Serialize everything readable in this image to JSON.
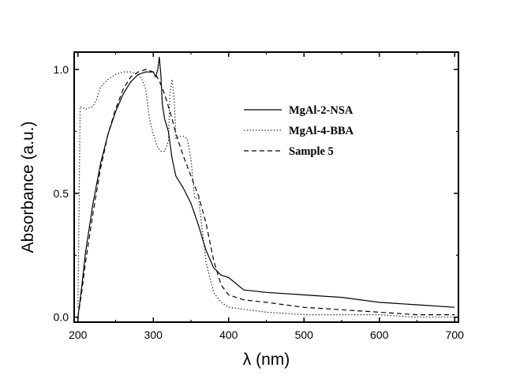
{
  "chart_data": {
    "type": "line",
    "xlabel": "λ (nm)",
    "ylabel": "Absorbance (a.u.)",
    "xlim": [
      195,
      705
    ],
    "ylim": [
      -0.02,
      1.07
    ],
    "xticks": [
      200,
      300,
      400,
      500,
      600,
      700
    ],
    "xtick_labels": [
      "200",
      "300",
      "400",
      "500",
      "600",
      "700"
    ],
    "yticks": [
      0.0,
      0.5,
      1.0
    ],
    "ytick_labels": [
      "0.0",
      "0.5",
      "1.0"
    ],
    "grid": false,
    "legend_position": "top-right",
    "series": [
      {
        "name": "MgAl-2-NSA",
        "style": "solid",
        "x": [
          200,
          205,
          210,
          220,
          230,
          240,
          250,
          260,
          270,
          280,
          290,
          295,
          300,
          303,
          306,
          308,
          310,
          312,
          315,
          320,
          325,
          330,
          340,
          350,
          360,
          370,
          380,
          390,
          400,
          420,
          450,
          500,
          550,
          600,
          650,
          700
        ],
        "y": [
          0.0,
          0.12,
          0.26,
          0.46,
          0.62,
          0.74,
          0.83,
          0.9,
          0.95,
          0.98,
          0.99,
          0.99,
          0.99,
          0.97,
          1.0,
          1.05,
          0.98,
          0.86,
          0.8,
          0.75,
          0.64,
          0.57,
          0.52,
          0.46,
          0.37,
          0.27,
          0.2,
          0.17,
          0.16,
          0.11,
          0.1,
          0.09,
          0.08,
          0.06,
          0.05,
          0.04
        ]
      },
      {
        "name": "MgAl-4-BBA",
        "style": "dotted",
        "x": [
          200,
          203,
          210,
          220,
          225,
          230,
          240,
          250,
          260,
          270,
          280,
          285,
          290,
          295,
          300,
          305,
          310,
          315,
          320,
          322,
          325,
          328,
          330,
          335,
          340,
          345,
          350,
          355,
          360,
          365,
          370,
          380,
          390,
          400,
          450,
          500,
          550,
          600,
          650,
          700
        ],
        "y": [
          0.04,
          0.85,
          0.84,
          0.85,
          0.88,
          0.93,
          0.96,
          0.98,
          0.99,
          0.99,
          0.98,
          0.96,
          0.92,
          0.8,
          0.74,
          0.69,
          0.67,
          0.67,
          0.71,
          0.9,
          0.96,
          0.87,
          0.72,
          0.73,
          0.73,
          0.72,
          0.64,
          0.48,
          0.48,
          0.35,
          0.22,
          0.1,
          0.06,
          0.04,
          0.02,
          0.01,
          0.01,
          0.01,
          0.0,
          0.0
        ]
      },
      {
        "name": "Sample 5",
        "style": "dashed",
        "x": [
          200,
          205,
          210,
          220,
          230,
          240,
          250,
          260,
          270,
          280,
          290,
          300,
          305,
          310,
          315,
          320,
          325,
          330,
          340,
          350,
          360,
          370,
          380,
          390,
          400,
          420,
          450,
          500,
          550,
          600,
          650,
          700
        ],
        "y": [
          0.0,
          0.1,
          0.22,
          0.42,
          0.6,
          0.74,
          0.84,
          0.92,
          0.97,
          0.99,
          1.0,
          0.99,
          0.97,
          0.94,
          0.9,
          0.85,
          0.8,
          0.74,
          0.65,
          0.57,
          0.49,
          0.38,
          0.23,
          0.13,
          0.09,
          0.07,
          0.06,
          0.04,
          0.03,
          0.02,
          0.01,
          0.01
        ]
      }
    ]
  }
}
